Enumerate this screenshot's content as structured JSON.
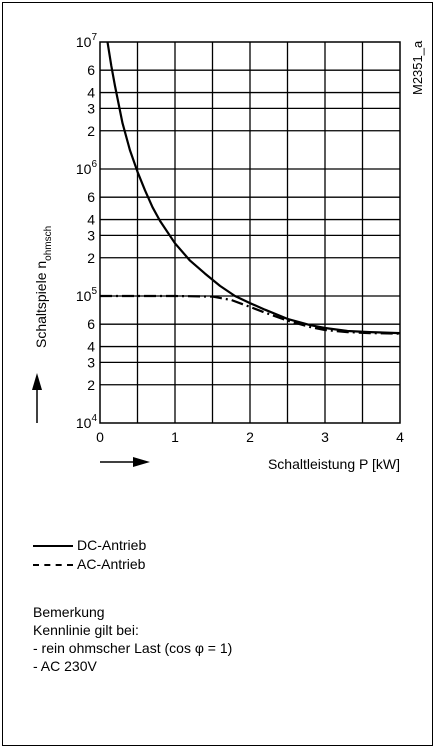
{
  "figure_id": "M2351_a",
  "chart_data": {
    "type": "line",
    "xlabel": "Schaltleistung P [kW]",
    "ylabel_main": "Schaltspiele n",
    "ylabel_sub": "ohmsch",
    "y_scale": "log",
    "xlim": [
      0,
      4
    ],
    "ylim": [
      10000,
      10000000
    ],
    "x_ticks": [
      "0",
      "1",
      "2",
      "3",
      "4"
    ],
    "y_ticks": [
      {
        "value": 10000,
        "base": "10",
        "exp": "4"
      },
      {
        "value": 20000,
        "base": "2",
        "exp": ""
      },
      {
        "value": 30000,
        "base": "3",
        "exp": ""
      },
      {
        "value": 40000,
        "base": "4",
        "exp": ""
      },
      {
        "value": 60000,
        "base": "6",
        "exp": ""
      },
      {
        "value": 100000,
        "base": "10",
        "exp": "5"
      },
      {
        "value": 200000,
        "base": "2",
        "exp": ""
      },
      {
        "value": 300000,
        "base": "3",
        "exp": ""
      },
      {
        "value": 400000,
        "base": "4",
        "exp": ""
      },
      {
        "value": 600000,
        "base": "6",
        "exp": ""
      },
      {
        "value": 1000000,
        "base": "10",
        "exp": "6"
      },
      {
        "value": 2000000,
        "base": "2",
        "exp": ""
      },
      {
        "value": 3000000,
        "base": "3",
        "exp": ""
      },
      {
        "value": 4000000,
        "base": "4",
        "exp": ""
      },
      {
        "value": 6000000,
        "base": "6",
        "exp": ""
      },
      {
        "value": 10000000,
        "base": "10",
        "exp": "7"
      }
    ],
    "grid": true,
    "series": [
      {
        "name": "DC-Antrieb",
        "style": "solid",
        "x": [
          0.1,
          0.15,
          0.2,
          0.3,
          0.4,
          0.5,
          0.6,
          0.7,
          0.8,
          1.0,
          1.2,
          1.4,
          1.6,
          1.8,
          2.0,
          2.2,
          2.5,
          2.8,
          3.0,
          3.3,
          3.6,
          4.0
        ],
        "y": [
          10000000,
          6500000,
          4500000,
          2300000,
          1400000,
          950000,
          680000,
          500000,
          390000,
          260000,
          190000,
          150000,
          120000,
          100000,
          88000,
          78000,
          66000,
          59000,
          56000,
          53000,
          52000,
          51000
        ]
      },
      {
        "name": "AC-Antrieb",
        "style": "dashdot",
        "x": [
          0,
          0.5,
          1.0,
          1.5,
          1.75,
          2.0,
          2.2,
          2.5,
          2.8,
          3.0,
          3.3,
          3.6,
          4.0
        ],
        "y": [
          100000,
          100000,
          100000,
          99000,
          93000,
          82000,
          74000,
          64000,
          57000,
          54000,
          52000,
          51000,
          50500
        ]
      }
    ]
  },
  "legend": {
    "dc_label": "DC-Antrieb",
    "ac_label": "AC-Antrieb"
  },
  "remarks": [
    "Bemerkung",
    "Kennlinie gilt bei:",
    "- rein ohmscher Last (cos φ = 1)",
    "- AC 230V"
  ]
}
